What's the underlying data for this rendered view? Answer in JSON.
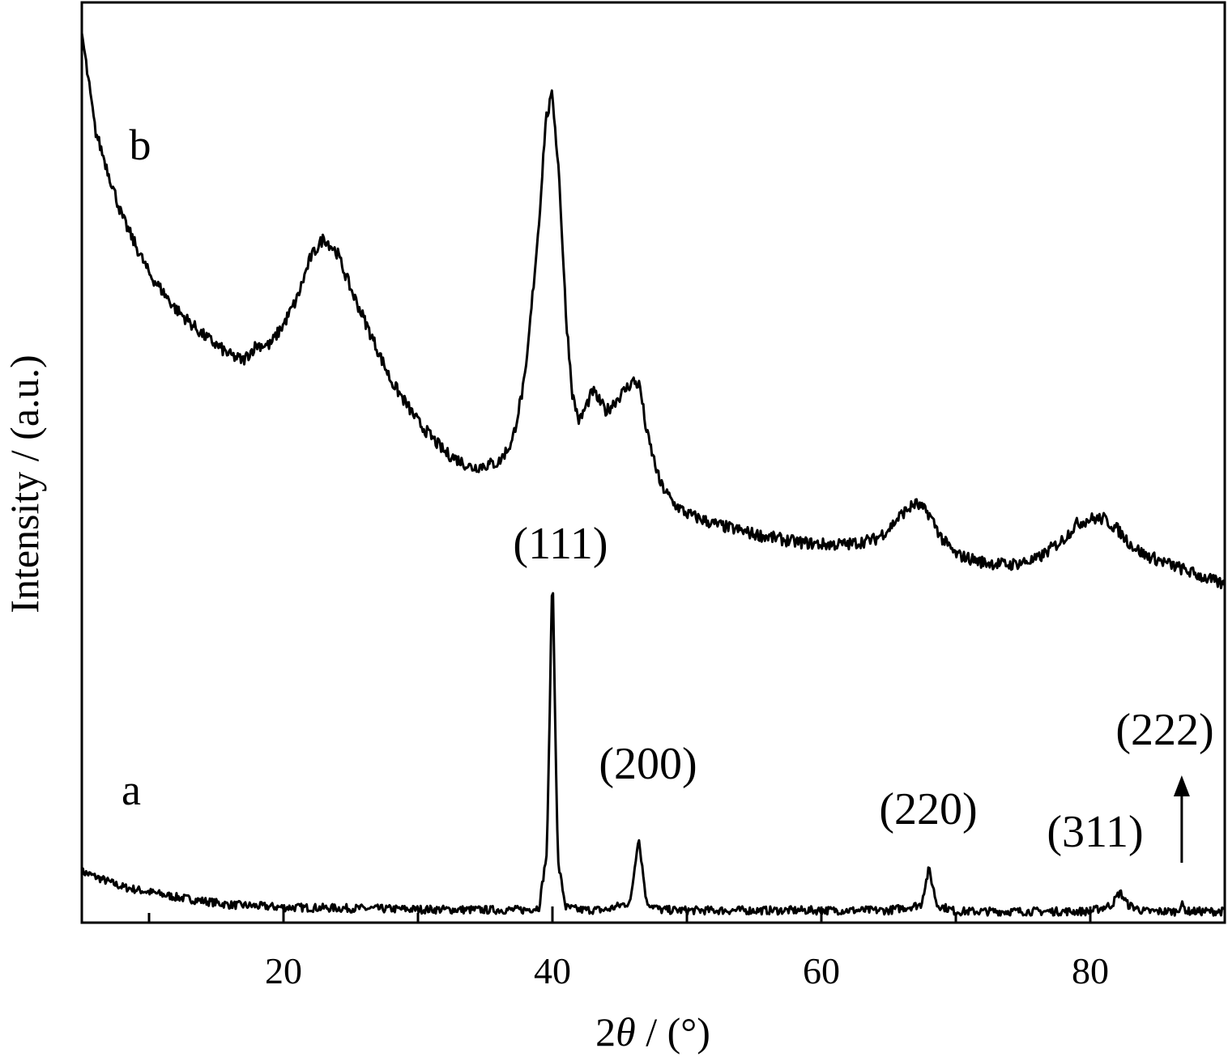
{
  "chart_data": {
    "type": "line",
    "xlabel": "2θ / (°)",
    "ylabel": "Intensity / (a.u.)",
    "xlim": [
      5,
      90
    ],
    "x_ticks_major": [
      20,
      40,
      60,
      80
    ],
    "x_ticks_minor": [
      10,
      30,
      50,
      70
    ],
    "y_ticks": [],
    "grid": false,
    "series": [
      {
        "name": "a",
        "x": [
          5,
          8,
          12,
          16,
          20,
          25,
          30,
          35,
          38,
          39,
          39.6,
          40,
          40.4,
          41,
          42,
          44,
          45.8,
          46.4,
          47,
          48,
          50,
          55,
          60,
          65,
          67.4,
          68.0,
          68.6,
          70,
          75,
          80,
          81.6,
          82.2,
          82.8,
          84,
          86.4,
          86.8,
          87.2,
          88,
          90
        ],
        "y": [
          0.1,
          0.07,
          0.05,
          0.035,
          0.03,
          0.028,
          0.026,
          0.025,
          0.025,
          0.03,
          0.14,
          0.7,
          0.12,
          0.03,
          0.025,
          0.025,
          0.04,
          0.17,
          0.04,
          0.025,
          0.024,
          0.024,
          0.024,
          0.024,
          0.035,
          0.105,
          0.035,
          0.022,
          0.022,
          0.022,
          0.035,
          0.06,
          0.035,
          0.022,
          0.022,
          0.035,
          0.022,
          0.022,
          0.022
        ]
      },
      {
        "name": "b",
        "x": [
          5,
          6,
          8,
          10,
          12,
          14,
          16,
          17,
          18,
          19,
          20,
          21,
          22,
          23,
          24,
          25,
          26,
          28,
          30,
          32,
          34,
          36,
          37,
          38,
          39,
          39.5,
          40,
          40.5,
          41,
          41.5,
          42,
          42.5,
          43,
          43.5,
          44,
          45,
          46,
          46.5,
          47,
          48,
          49,
          50,
          52,
          55,
          58,
          60,
          62,
          64,
          65,
          66,
          67,
          68,
          69,
          70,
          72,
          74,
          76,
          78,
          79,
          80,
          81,
          82,
          83,
          84,
          86,
          88,
          90
        ],
        "y": [
          1.74,
          1.55,
          1.38,
          1.27,
          1.2,
          1.15,
          1.11,
          1.1,
          1.13,
          1.13,
          1.17,
          1.22,
          1.3,
          1.34,
          1.31,
          1.24,
          1.18,
          1.06,
          0.98,
          0.92,
          0.89,
          0.9,
          0.94,
          1.07,
          1.37,
          1.57,
          1.62,
          1.46,
          1.19,
          1.03,
          0.98,
          1.01,
          1.04,
          1.02,
          1.0,
          1.03,
          1.06,
          1.05,
          0.96,
          0.86,
          0.82,
          0.8,
          0.78,
          0.76,
          0.745,
          0.74,
          0.74,
          0.75,
          0.77,
          0.8,
          0.82,
          0.8,
          0.75,
          0.72,
          0.705,
          0.7,
          0.71,
          0.75,
          0.78,
          0.79,
          0.79,
          0.77,
          0.74,
          0.72,
          0.7,
          0.68,
          0.66
        ]
      }
    ],
    "annotations": [
      {
        "text": "(111)",
        "x": 40
      },
      {
        "text": "(200)",
        "x": 46.5
      },
      {
        "text": "(220)",
        "x": 68.0
      },
      {
        "text": "(311)",
        "x": 82.2
      },
      {
        "text": "(222)",
        "x": 86.8,
        "arrow": "up"
      }
    ],
    "series_labels": [
      "a",
      "b"
    ]
  }
}
